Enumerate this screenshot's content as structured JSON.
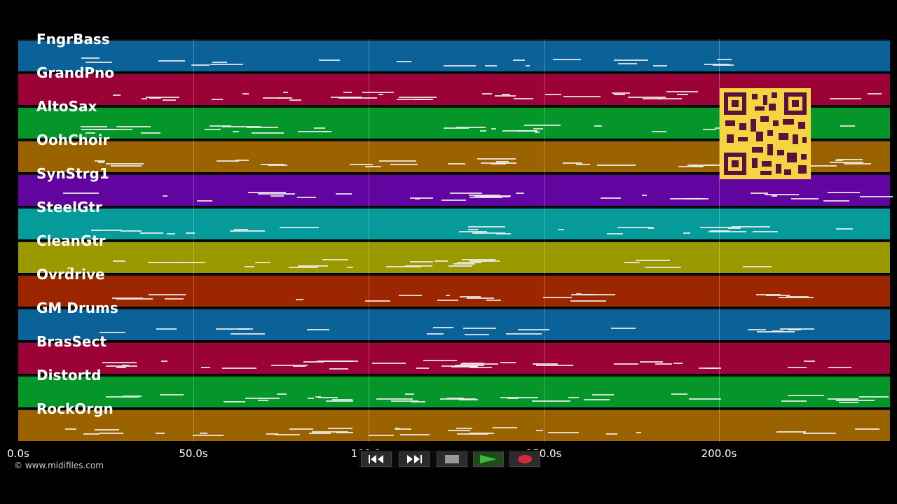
{
  "tracks": [
    {
      "label": "FngrBass",
      "color": "#0a6298"
    },
    {
      "label": "GrandPno",
      "color": "#9a0238"
    },
    {
      "label": "AltoSax",
      "color": "#05962a"
    },
    {
      "label": "OohChoir",
      "color": "#9b6300"
    },
    {
      "label": "SynStrg1",
      "color": "#6204a0"
    },
    {
      "label": "SteelGtr",
      "color": "#059b9b"
    },
    {
      "label": "CleanGtr",
      "color": "#9a9a00"
    },
    {
      "label": "Ovrdrive",
      "color": "#9b2600"
    },
    {
      "label": "GM Drums",
      "color": "#0a6298"
    },
    {
      "label": "BrasSect",
      "color": "#9a0238"
    },
    {
      "label": "Distortd",
      "color": "#05962a"
    },
    {
      "label": "RockOrgn",
      "color": "#9b6300"
    }
  ],
  "timeline": {
    "ticks": [
      {
        "label": "0.0s",
        "seconds": 0
      },
      {
        "label": "50.0s",
        "seconds": 50
      },
      {
        "label": "100.0s",
        "seconds": 100
      },
      {
        "label": "150.0s",
        "seconds": 150
      },
      {
        "label": "200.0s",
        "seconds": 200
      }
    ],
    "max_seconds": 248.8
  },
  "copyright": "© www.midifiles.com",
  "transport": {
    "rewind_icon": "rewind-icon",
    "fast_forward_icon": "fast-forward-icon",
    "stop_icon": "stop-icon",
    "play_icon": "play-icon",
    "record_icon": "record-icon"
  },
  "qr_code": {
    "icon": "qr-code-icon",
    "color": "#f5d442"
  }
}
